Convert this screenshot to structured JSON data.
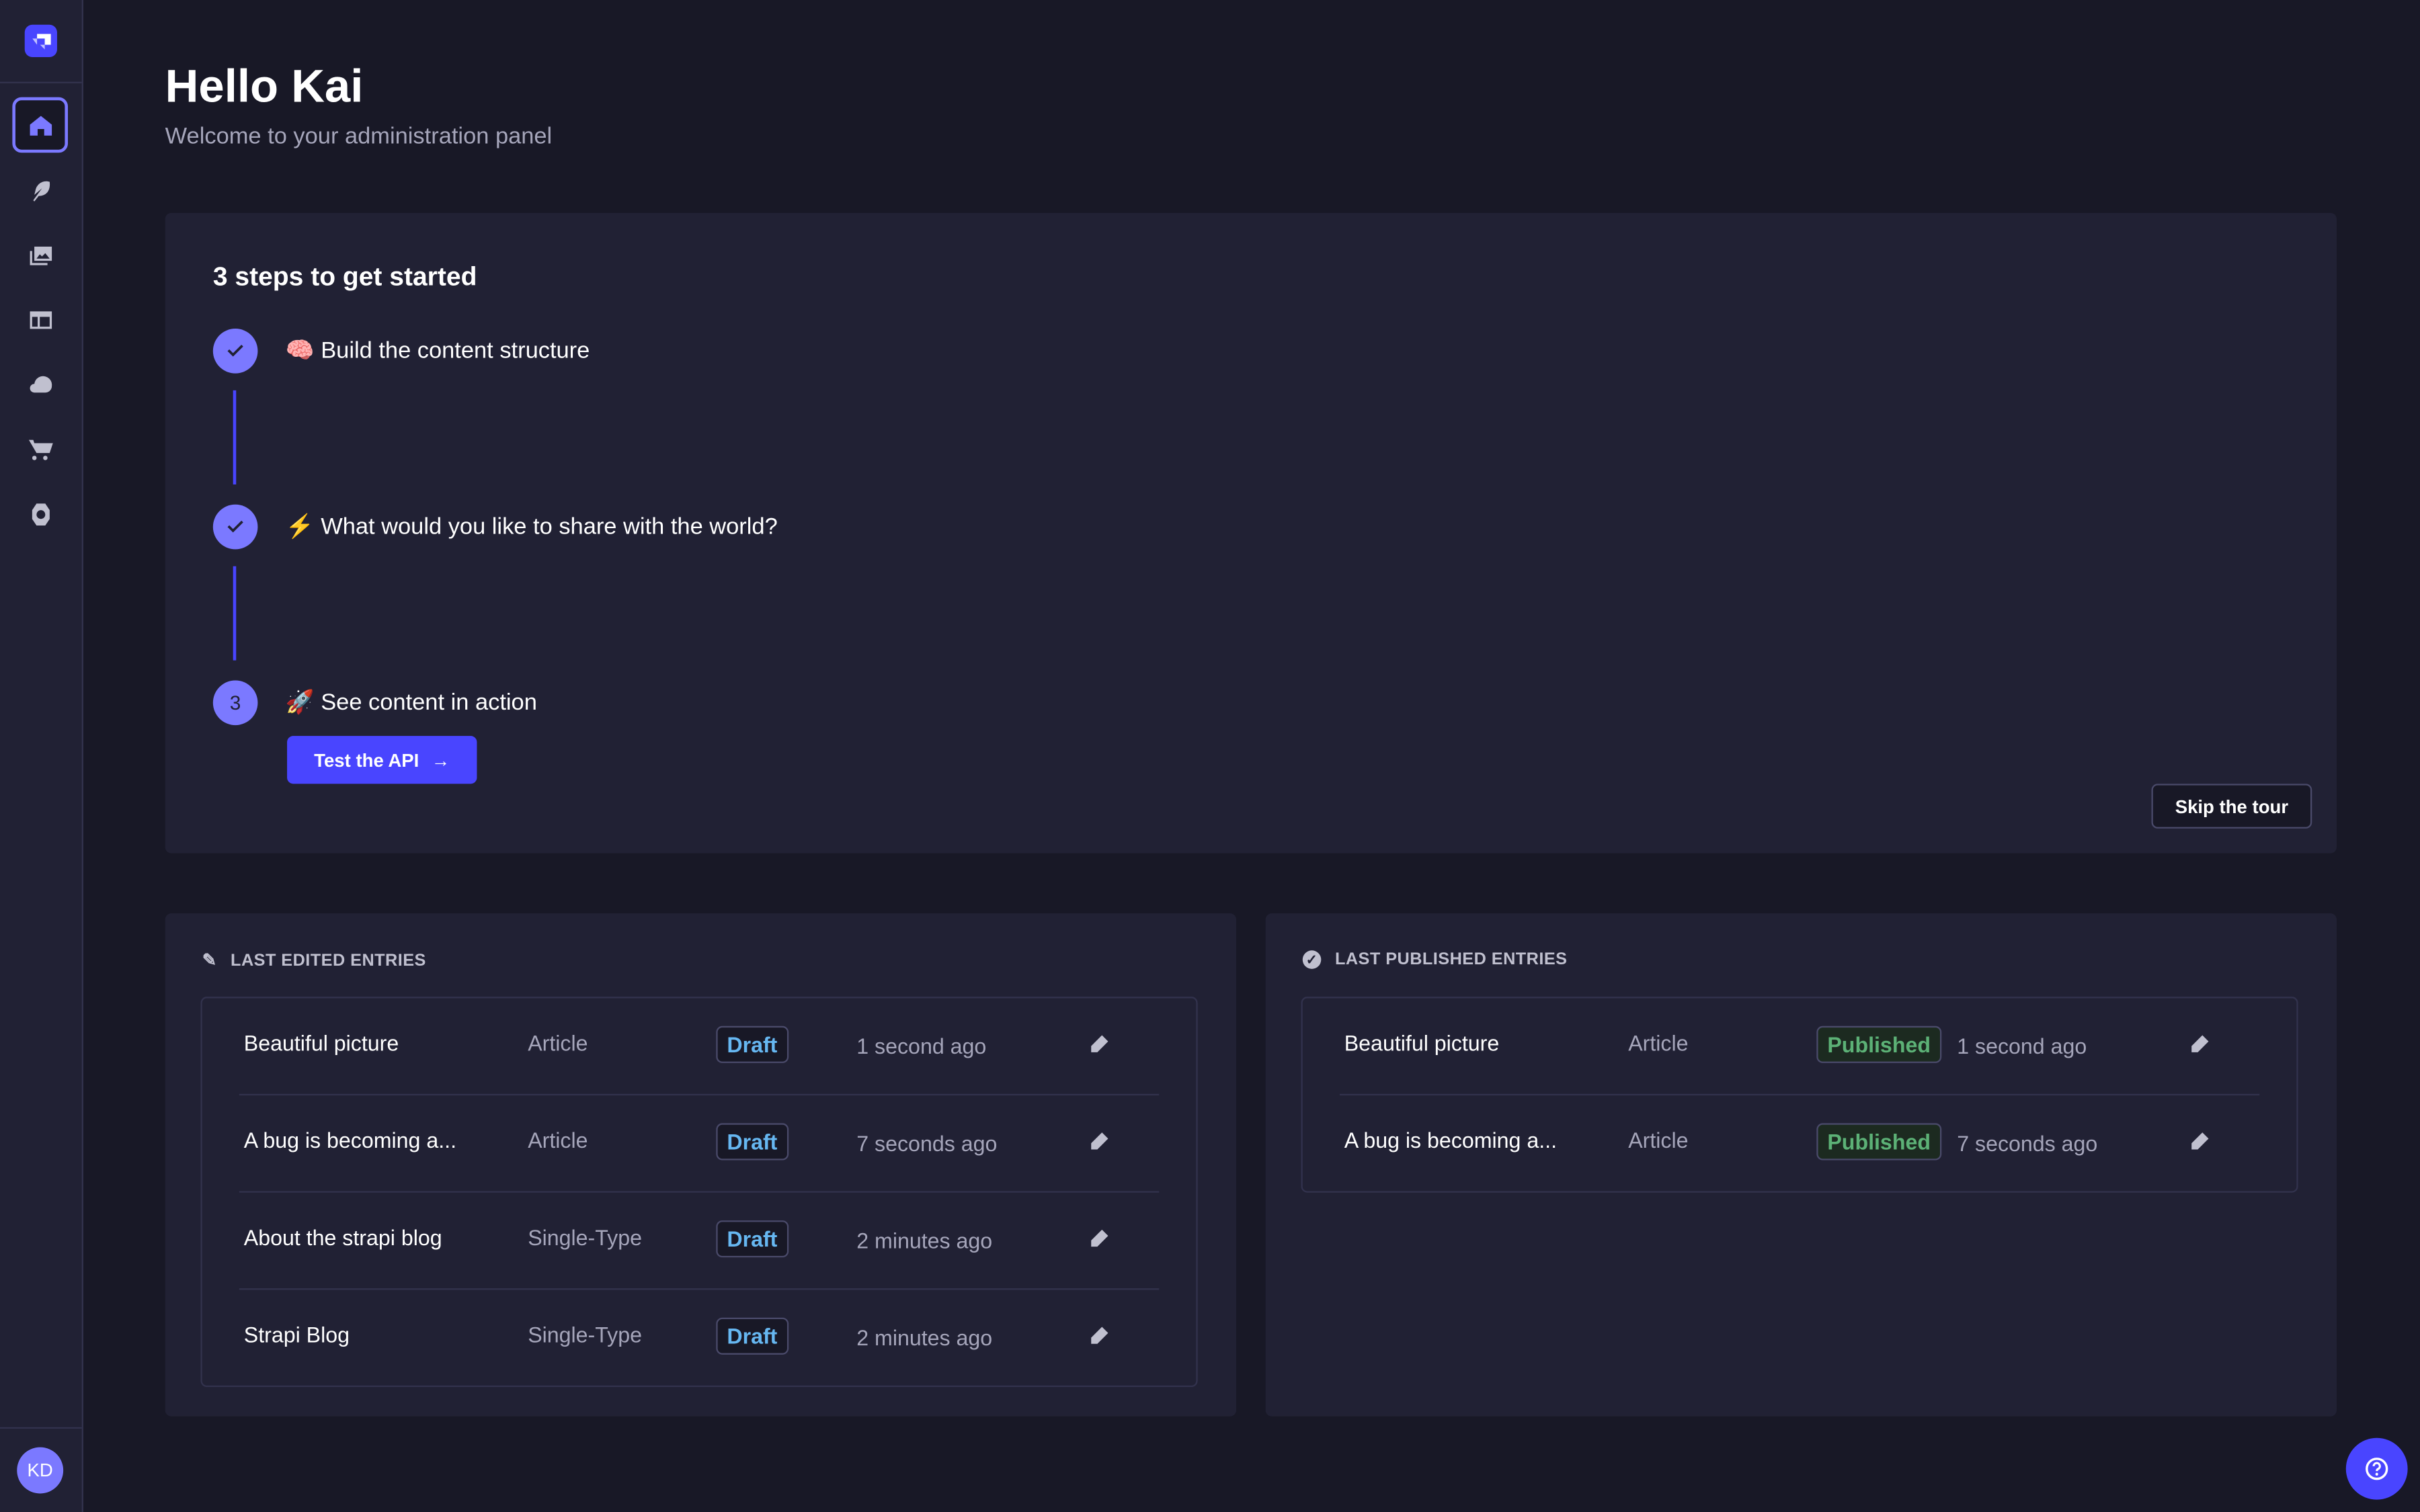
{
  "sidebar": {
    "items": [
      {
        "name": "home",
        "icon": "home-icon",
        "active": true
      },
      {
        "name": "content-manager",
        "icon": "feather-icon"
      },
      {
        "name": "media-library",
        "icon": "images-icon"
      },
      {
        "name": "content-type-builder",
        "icon": "layout-icon"
      },
      {
        "name": "deployment",
        "icon": "cloud-icon"
      },
      {
        "name": "marketplace",
        "icon": "cart-icon"
      },
      {
        "name": "settings",
        "icon": "gear-icon"
      }
    ],
    "avatar": "KD"
  },
  "header": {
    "title": "Hello Kai",
    "subtitle": "Welcome to your administration panel"
  },
  "steps": {
    "title": "3 steps to get started",
    "items": [
      {
        "label": "🧠 Build the content structure",
        "done": true,
        "number": "1"
      },
      {
        "label": "⚡ What would you like to share with the world?",
        "done": true,
        "number": "2"
      },
      {
        "label": "🚀 See content in action",
        "done": false,
        "number": "3"
      }
    ],
    "test_api": "Test the API",
    "skip": "Skip the tour"
  },
  "last_edited": {
    "title": "LAST EDITED ENTRIES",
    "rows": [
      {
        "title": "Beautiful picture",
        "type": "Article",
        "status": "Draft",
        "time": "1 second ago"
      },
      {
        "title": "A bug is becoming a...",
        "type": "Article",
        "status": "Draft",
        "time": "7 seconds ago"
      },
      {
        "title": "About the strapi blog",
        "type": "Single-Type",
        "status": "Draft",
        "time": "2 minutes ago"
      },
      {
        "title": "Strapi Blog",
        "type": "Single-Type",
        "status": "Draft",
        "time": "2 minutes ago"
      }
    ]
  },
  "last_published": {
    "title": "LAST PUBLISHED ENTRIES",
    "rows": [
      {
        "title": "Beautiful picture",
        "type": "Article",
        "status": "Published",
        "time": "1 second ago"
      },
      {
        "title": "A bug is becoming a...",
        "type": "Article",
        "status": "Published",
        "time": "7 seconds ago"
      }
    ]
  },
  "colors": {
    "primary": "#4945ff",
    "accent": "#7b79ff",
    "draft": "#66b7f1",
    "published": "#5cb176",
    "background": "#181826",
    "surface": "#212134"
  }
}
